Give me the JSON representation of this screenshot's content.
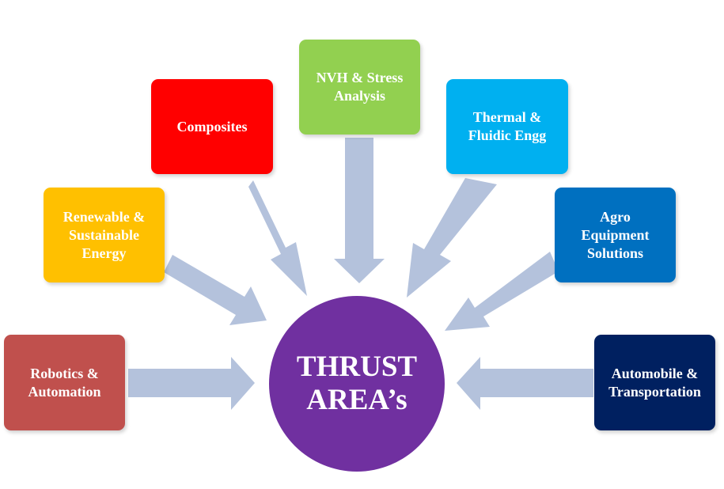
{
  "center": {
    "label": "THRUST\nAREA’s",
    "color": "#7030a0"
  },
  "arrow_color": "#b4c2dc",
  "areas": [
    {
      "id": "robotics",
      "label": "Robotics &\nAutomation",
      "color": "#c0504d"
    },
    {
      "id": "renewable",
      "label": "Renewable &\nSustainable\nEnergy",
      "color": "#ffc000"
    },
    {
      "id": "composites",
      "label": "Composites",
      "color": "#ff0000"
    },
    {
      "id": "nvh",
      "label": "NVH & Stress\nAnalysis",
      "color": "#92d050"
    },
    {
      "id": "thermal",
      "label": "Thermal &\nFluidic Engg",
      "color": "#00b0f0"
    },
    {
      "id": "agro",
      "label": "Agro\nEquipment\nSolutions",
      "color": "#0070c0"
    },
    {
      "id": "automobile",
      "label": "Automobile &\nTransportation",
      "color": "#002060"
    }
  ]
}
